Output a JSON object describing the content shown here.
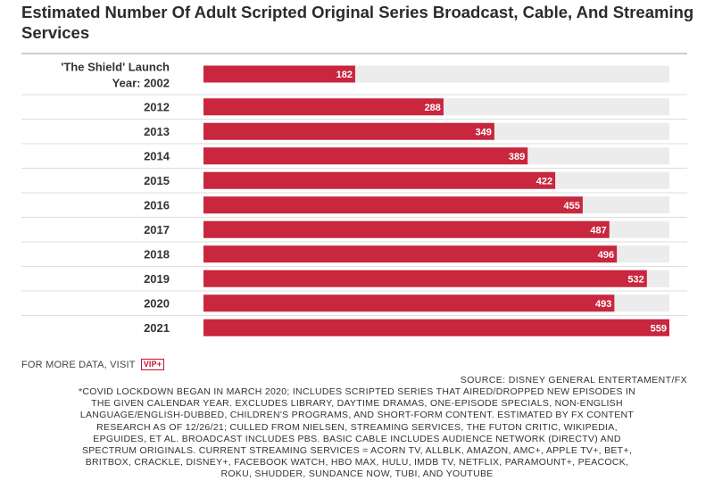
{
  "title": "Estimated Number Of Adult Scripted Original Series Broadcast, Cable, And Streaming Services",
  "colors": {
    "bar": "#c8273e",
    "track": "#ececec",
    "divider": "#dddddd"
  },
  "chart_data": {
    "type": "bar",
    "orientation": "horizontal",
    "title": "Estimated Number Of Adult Scripted Original Series Broadcast, Cable, And Streaming Services",
    "categories": [
      [
        "'The Shield' Launch",
        "Year: 2002"
      ],
      [
        "2012"
      ],
      [
        "2013"
      ],
      [
        "2014"
      ],
      [
        "2015"
      ],
      [
        "2016"
      ],
      [
        "2017"
      ],
      [
        "2018"
      ],
      [
        "2019"
      ],
      [
        "2020"
      ],
      [
        "2021"
      ]
    ],
    "values": [
      182,
      288,
      349,
      389,
      422,
      455,
      487,
      496,
      532,
      493,
      559
    ],
    "xlim": [
      0,
      559
    ],
    "xlabel": "",
    "ylabel": "",
    "grid": false
  },
  "footer": {
    "more_text": "FOR MORE DATA, VISIT",
    "vip_badge": "VIP+",
    "source": "SOURCE: DISNEY GENERAL ENTERTAMENT/FX",
    "note_lines": [
      "*COVID LOCKDOWN BEGAN IN MARCH 2020; INCLUDES SCRIPTED SERIES THAT AIRED/DROPPED NEW EPISODES IN",
      "THE GIVEN CALENDAR YEAR. EXCLUDES LIBRARY, DAYTIME DRAMAS, ONE-EPISODE SPECIALS, NON-ENGLISH",
      "LANGUAGE/ENGLISH-DUBBED, CHILDREN'S PROGRAMS, AND SHORT-FORM CONTENT. ESTIMATED BY FX CONTENT",
      "RESEARCH AS OF 12/26/21; CULLED FROM NIELSEN, STREAMING SERVICES, THE FUTON CRITIC, WIKIPEDIA,",
      "EPGUIDES, ET AL. BROADCAST INCLUDES PBS. BASIC CABLE INCLUDES AUDIENCE NETWORK (DIRECTV) AND",
      "SPECTRUM ORIGINALS. CURRENT STREAMING SERVICES = ACORN TV, ALLBLK, AMAZON, AMC+, APPLE TV+, BET+,",
      "BRITBOX, CRACKLE, DISNEY+, FACEBOOK WATCH, HBO MAX, HULU, IMDB TV, NETFLIX, PARAMOUNT+, PEACOCK,",
      "ROKU, SHUDDER, SUNDANCE NOW, TUBI, AND YOUTUBE"
    ]
  }
}
